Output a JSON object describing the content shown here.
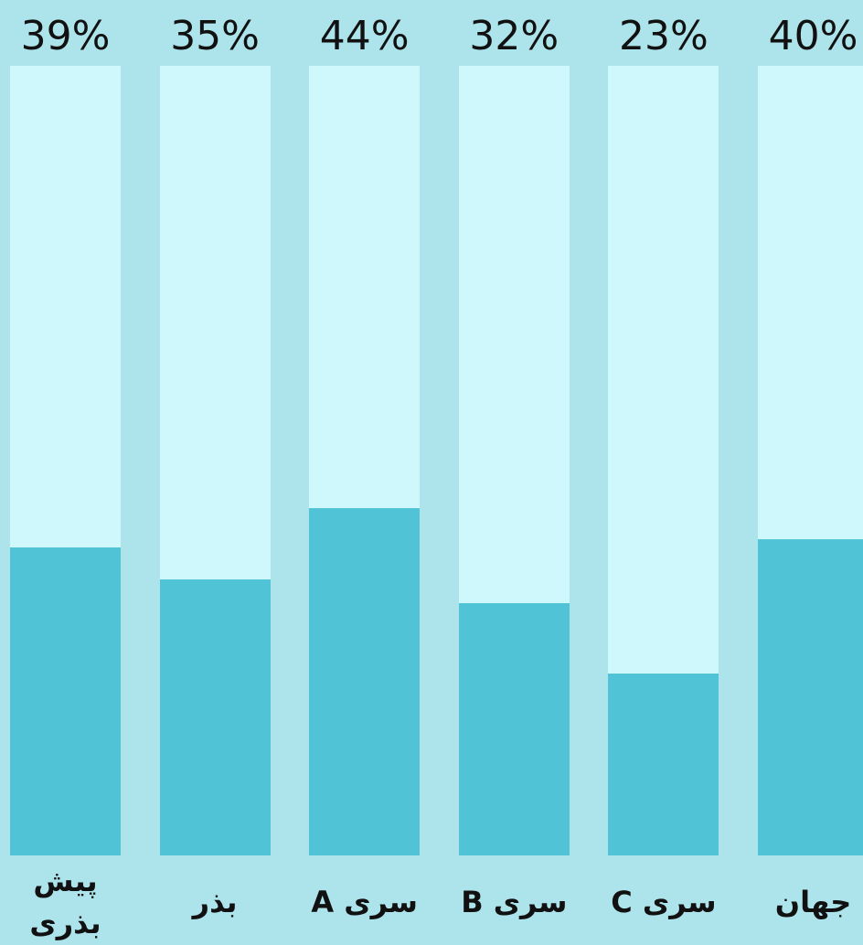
{
  "chart_data": {
    "type": "bar",
    "categories": [
      "پیش بذری",
      "بذر",
      "سری A",
      "سری B",
      "سری C",
      "جهان"
    ],
    "values": [
      39,
      35,
      44,
      32,
      23,
      40
    ],
    "value_labels": [
      "39%",
      "35%",
      "44%",
      "32%",
      "23%",
      "40%"
    ],
    "color": "#50c4d6",
    "track_color": "#cff8fc",
    "background": "#ade4ec",
    "ylim": [
      0,
      100
    ]
  }
}
